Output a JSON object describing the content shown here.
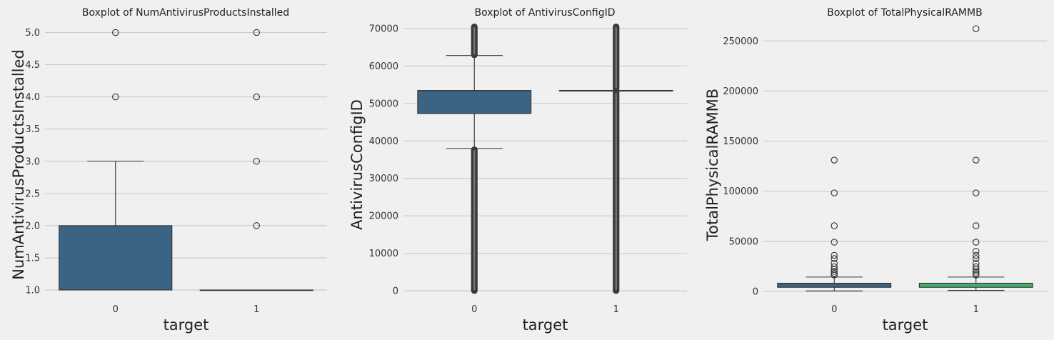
{
  "chart_data": [
    {
      "type": "box",
      "title": "Boxplot of NumAntivirusProductsInstalled",
      "xlabel": "target",
      "ylabel": "NumAntivirusProductsInstalled",
      "categories": [
        "0",
        "1"
      ],
      "ylim": [
        0.9,
        5.15
      ],
      "yticks": [
        1.0,
        1.5,
        2.0,
        2.5,
        3.0,
        3.5,
        4.0,
        4.5,
        5.0
      ],
      "ytick_labels": [
        "1.0",
        "1.5",
        "2.0",
        "2.5",
        "3.0",
        "3.5",
        "4.0",
        "4.5",
        "5.0"
      ],
      "grid": "horizontal",
      "colors": [
        "#3b6383",
        "#3b6383"
      ],
      "boxes": [
        {
          "category": "0",
          "whisker_low": 1.0,
          "q1": 1.0,
          "median": 1.0,
          "q3": 2.0,
          "whisker_high": 3.0,
          "outliers": [
            4.0,
            5.0
          ]
        },
        {
          "category": "1",
          "whisker_low": 1.0,
          "q1": 1.0,
          "median": 1.0,
          "q3": 1.0,
          "whisker_high": 1.0,
          "outliers": [
            2.0,
            3.0,
            4.0,
            5.0
          ]
        }
      ]
    },
    {
      "type": "box",
      "title": "Boxplot of AntivirusConfigID",
      "xlabel": "target",
      "ylabel": "AntivirusConfigID",
      "categories": [
        "0",
        "1"
      ],
      "ylim": [
        -1500,
        71500
      ],
      "yticks": [
        0,
        10000,
        20000,
        30000,
        40000,
        50000,
        60000,
        70000
      ],
      "ytick_labels": [
        "0",
        "10000",
        "20000",
        "30000",
        "40000",
        "50000",
        "60000",
        "70000"
      ],
      "grid": "horizontal",
      "colors": [
        "#3b6383",
        "#3b6383"
      ],
      "boxes": [
        {
          "category": "0",
          "whisker_low": 38000,
          "q1": 47300,
          "median": 53450,
          "q3": 53450,
          "whisker_high": 62800,
          "outliers_dense": [
            [
              0,
              37700
            ],
            [
              62900,
              70500
            ]
          ]
        },
        {
          "category": "1",
          "whisker_low": 53450,
          "q1": 53450,
          "median": 53450,
          "q3": 53450,
          "whisker_high": 53450,
          "outliers_dense": [
            [
              0,
              53000
            ],
            [
              53900,
              70500
            ]
          ]
        }
      ]
    },
    {
      "type": "box",
      "title": "Boxplot of TotalPhysicalRAMMB",
      "xlabel": "target",
      "ylabel": "TotalPhysicalRAMMB",
      "categories": [
        "0",
        "1"
      ],
      "ylim": [
        -5000,
        268000
      ],
      "yticks": [
        0,
        50000,
        100000,
        150000,
        200000,
        250000
      ],
      "ytick_labels": [
        "0",
        "50000",
        "100000",
        "150000",
        "200000",
        "250000"
      ],
      "grid": "horizontal",
      "colors": [
        "#3b6383",
        "#3fae6f"
      ],
      "boxes": [
        {
          "category": "0",
          "whisker_low": 512,
          "q1": 4096,
          "median": 8192,
          "q3": 8192,
          "whisker_high": 14336,
          "outliers": [
            16384,
            18000,
            20000,
            22000,
            24576,
            28000,
            32768,
            36000,
            49152,
            65536,
            98304,
            131072
          ]
        },
        {
          "category": "1",
          "whisker_low": 1024,
          "q1": 4096,
          "median": 8192,
          "q3": 8192,
          "whisker_high": 14336,
          "outliers": [
            16384,
            18000,
            20000,
            22000,
            24576,
            28000,
            32768,
            36000,
            40000,
            49152,
            65536,
            98304,
            131072,
            262144
          ]
        }
      ]
    }
  ]
}
